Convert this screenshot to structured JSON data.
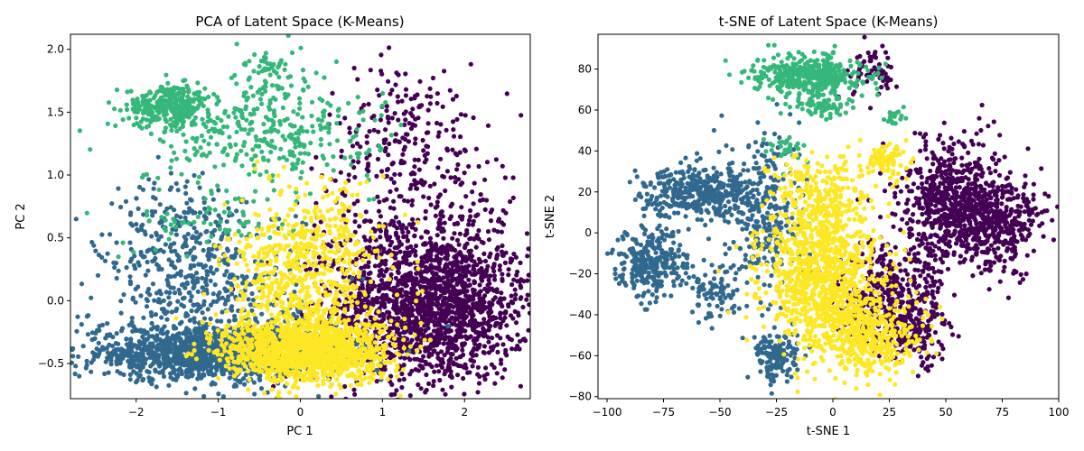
{
  "figure": {
    "colors": {
      "cluster_0": "#440154",
      "cluster_1": "#31688e",
      "cluster_2": "#35b779",
      "cluster_3": "#fde725"
    }
  },
  "chart_data": [
    {
      "type": "scatter",
      "title": "PCA of Latent Space (K-Means)",
      "xlabel": "PC 1",
      "ylabel": "PC 2",
      "xlim": [
        -2.8,
        2.8
      ],
      "ylim": [
        -0.78,
        2.12
      ],
      "xticks": [
        -2,
        -1,
        0,
        1,
        2
      ],
      "xtick_labels": [
        "−2",
        "−1",
        "0",
        "1",
        "2"
      ],
      "yticks": [
        -0.5,
        0.0,
        0.5,
        1.0,
        1.5,
        2.0
      ],
      "ytick_labels": [
        "−0.5",
        "0.0",
        "0.5",
        "1.0",
        "1.5",
        "2.0"
      ],
      "grid": false,
      "legend": "none",
      "clusters": [
        {
          "color": "#440154",
          "regions": [
            {
              "cx": 1.6,
              "cy": -0.05,
              "sx": 0.6,
              "sy": 0.3,
              "n": 1600
            },
            {
              "cx": 1.4,
              "cy": 0.4,
              "sx": 0.6,
              "sy": 0.4,
              "n": 350
            },
            {
              "cx": 1.3,
              "cy": 1.3,
              "sx": 0.5,
              "sy": 0.3,
              "n": 220
            }
          ]
        },
        {
          "color": "#31688e",
          "regions": [
            {
              "cx": -1.1,
              "cy": -0.42,
              "sx": 0.8,
              "sy": 0.1,
              "n": 1300
            },
            {
              "cx": -1.2,
              "cy": 0.05,
              "sx": 0.6,
              "sy": 0.35,
              "n": 500
            },
            {
              "cx": -1.5,
              "cy": 0.6,
              "sx": 0.4,
              "sy": 0.2,
              "n": 120
            }
          ]
        },
        {
          "color": "#35b779",
          "regions": [
            {
              "cx": -1.6,
              "cy": 1.55,
              "sx": 0.25,
              "sy": 0.08,
              "n": 300
            },
            {
              "cx": -0.5,
              "cy": 1.35,
              "sx": 0.7,
              "sy": 0.2,
              "n": 350
            },
            {
              "cx": -0.4,
              "cy": 1.8,
              "sx": 0.15,
              "sy": 0.12,
              "n": 60
            },
            {
              "cx": -1.0,
              "cy": 0.65,
              "sx": 0.5,
              "sy": 0.15,
              "n": 70
            }
          ]
        },
        {
          "color": "#fde725",
          "regions": [
            {
              "cx": 0.1,
              "cy": -0.4,
              "sx": 0.5,
              "sy": 0.12,
              "n": 1300
            },
            {
              "cx": 0.0,
              "cy": 0.1,
              "sx": 0.45,
              "sy": 0.3,
              "n": 600
            },
            {
              "cx": 0.3,
              "cy": 0.6,
              "sx": 0.35,
              "sy": 0.2,
              "n": 120
            }
          ]
        }
      ]
    },
    {
      "type": "scatter",
      "title": "t-SNE of Latent Space (K-Means)",
      "xlabel": "t-SNE 1",
      "ylabel": "t-SNE 2",
      "xlim": [
        -104,
        100
      ],
      "ylim": [
        -81,
        97
      ],
      "xticks": [
        -100,
        -75,
        -50,
        -25,
        0,
        25,
        50,
        75,
        100
      ],
      "xtick_labels": [
        "−100",
        "−75",
        "−50",
        "−25",
        "0",
        "25",
        "50",
        "75",
        "100"
      ],
      "yticks": [
        -80,
        -60,
        -40,
        -20,
        0,
        20,
        40,
        60,
        80
      ],
      "ytick_labels": [
        "−80",
        "−60",
        "−40",
        "−20",
        "0",
        "20",
        "40",
        "60",
        "80"
      ],
      "grid": false,
      "legend": "none",
      "clusters": [
        {
          "color": "#440154",
          "regions": [
            {
              "cx": 55,
              "cy": 15,
              "sx": 12,
              "sy": 15,
              "n": 700
            },
            {
              "cx": 75,
              "cy": 5,
              "sx": 10,
              "sy": 10,
              "n": 300
            },
            {
              "cx": 25,
              "cy": -30,
              "sx": 12,
              "sy": 12,
              "n": 350
            },
            {
              "cx": 35,
              "cy": -50,
              "sx": 8,
              "sy": 8,
              "n": 150
            },
            {
              "cx": 20,
              "cy": 78,
              "sx": 6,
              "sy": 6,
              "n": 60
            }
          ]
        },
        {
          "color": "#31688e",
          "regions": [
            {
              "cx": -60,
              "cy": 20,
              "sx": 12,
              "sy": 6,
              "n": 400
            },
            {
              "cx": -80,
              "cy": -15,
              "sx": 8,
              "sy": 8,
              "n": 300
            },
            {
              "cx": -30,
              "cy": 10,
              "sx": 8,
              "sy": 20,
              "n": 300
            },
            {
              "cx": -25,
              "cy": -60,
              "sx": 5,
              "sy": 6,
              "n": 150
            },
            {
              "cx": -50,
              "cy": -30,
              "sx": 6,
              "sy": 6,
              "n": 80
            }
          ]
        },
        {
          "color": "#35b779",
          "regions": [
            {
              "cx": -10,
              "cy": 77,
              "sx": 12,
              "sy": 5,
              "n": 400
            },
            {
              "cx": -5,
              "cy": 62,
              "sx": 6,
              "sy": 3,
              "n": 60
            },
            {
              "cx": 27,
              "cy": 57,
              "sx": 2,
              "sy": 2,
              "n": 20
            },
            {
              "cx": -20,
              "cy": 40,
              "sx": 6,
              "sy": 4,
              "n": 30
            }
          ]
        },
        {
          "color": "#fde725",
          "regions": [
            {
              "cx": -5,
              "cy": -20,
              "sx": 13,
              "sy": 18,
              "n": 900
            },
            {
              "cx": 15,
              "cy": -50,
              "sx": 12,
              "sy": 10,
              "n": 400
            },
            {
              "cx": -5,
              "cy": 20,
              "sx": 10,
              "sy": 10,
              "n": 200
            },
            {
              "cx": 25,
              "cy": 35,
              "sx": 5,
              "sy": 5,
              "n": 80
            }
          ]
        }
      ]
    }
  ]
}
